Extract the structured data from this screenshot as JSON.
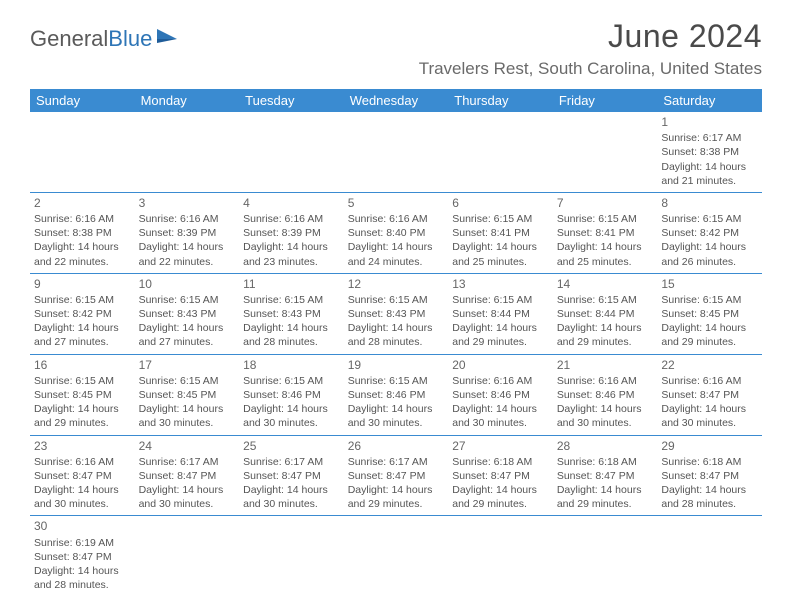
{
  "logo": {
    "text1": "General",
    "text2": "Blue"
  },
  "title": "June 2024",
  "location": "Travelers Rest, South Carolina, United States",
  "colors": {
    "header_bg": "#3a8bd1",
    "header_text": "#ffffff",
    "border": "#3a8bd1",
    "body_text": "#555555",
    "title_text": "#4a4a4a",
    "location_text": "#6a6a6a",
    "logo_gray": "#5a5a5a",
    "logo_blue": "#2e75b6"
  },
  "weekdays": [
    "Sunday",
    "Monday",
    "Tuesday",
    "Wednesday",
    "Thursday",
    "Friday",
    "Saturday"
  ],
  "weeks": [
    [
      null,
      null,
      null,
      null,
      null,
      null,
      {
        "n": "1",
        "sr": "6:17 AM",
        "ss": "8:38 PM",
        "dl": "14 hours and 21 minutes."
      }
    ],
    [
      {
        "n": "2",
        "sr": "6:16 AM",
        "ss": "8:38 PM",
        "dl": "14 hours and 22 minutes."
      },
      {
        "n": "3",
        "sr": "6:16 AM",
        "ss": "8:39 PM",
        "dl": "14 hours and 22 minutes."
      },
      {
        "n": "4",
        "sr": "6:16 AM",
        "ss": "8:39 PM",
        "dl": "14 hours and 23 minutes."
      },
      {
        "n": "5",
        "sr": "6:16 AM",
        "ss": "8:40 PM",
        "dl": "14 hours and 24 minutes."
      },
      {
        "n": "6",
        "sr": "6:15 AM",
        "ss": "8:41 PM",
        "dl": "14 hours and 25 minutes."
      },
      {
        "n": "7",
        "sr": "6:15 AM",
        "ss": "8:41 PM",
        "dl": "14 hours and 25 minutes."
      },
      {
        "n": "8",
        "sr": "6:15 AM",
        "ss": "8:42 PM",
        "dl": "14 hours and 26 minutes."
      }
    ],
    [
      {
        "n": "9",
        "sr": "6:15 AM",
        "ss": "8:42 PM",
        "dl": "14 hours and 27 minutes."
      },
      {
        "n": "10",
        "sr": "6:15 AM",
        "ss": "8:43 PM",
        "dl": "14 hours and 27 minutes."
      },
      {
        "n": "11",
        "sr": "6:15 AM",
        "ss": "8:43 PM",
        "dl": "14 hours and 28 minutes."
      },
      {
        "n": "12",
        "sr": "6:15 AM",
        "ss": "8:43 PM",
        "dl": "14 hours and 28 minutes."
      },
      {
        "n": "13",
        "sr": "6:15 AM",
        "ss": "8:44 PM",
        "dl": "14 hours and 29 minutes."
      },
      {
        "n": "14",
        "sr": "6:15 AM",
        "ss": "8:44 PM",
        "dl": "14 hours and 29 minutes."
      },
      {
        "n": "15",
        "sr": "6:15 AM",
        "ss": "8:45 PM",
        "dl": "14 hours and 29 minutes."
      }
    ],
    [
      {
        "n": "16",
        "sr": "6:15 AM",
        "ss": "8:45 PM",
        "dl": "14 hours and 29 minutes."
      },
      {
        "n": "17",
        "sr": "6:15 AM",
        "ss": "8:45 PM",
        "dl": "14 hours and 30 minutes."
      },
      {
        "n": "18",
        "sr": "6:15 AM",
        "ss": "8:46 PM",
        "dl": "14 hours and 30 minutes."
      },
      {
        "n": "19",
        "sr": "6:15 AM",
        "ss": "8:46 PM",
        "dl": "14 hours and 30 minutes."
      },
      {
        "n": "20",
        "sr": "6:16 AM",
        "ss": "8:46 PM",
        "dl": "14 hours and 30 minutes."
      },
      {
        "n": "21",
        "sr": "6:16 AM",
        "ss": "8:46 PM",
        "dl": "14 hours and 30 minutes."
      },
      {
        "n": "22",
        "sr": "6:16 AM",
        "ss": "8:47 PM",
        "dl": "14 hours and 30 minutes."
      }
    ],
    [
      {
        "n": "23",
        "sr": "6:16 AM",
        "ss": "8:47 PM",
        "dl": "14 hours and 30 minutes."
      },
      {
        "n": "24",
        "sr": "6:17 AM",
        "ss": "8:47 PM",
        "dl": "14 hours and 30 minutes."
      },
      {
        "n": "25",
        "sr": "6:17 AM",
        "ss": "8:47 PM",
        "dl": "14 hours and 30 minutes."
      },
      {
        "n": "26",
        "sr": "6:17 AM",
        "ss": "8:47 PM",
        "dl": "14 hours and 29 minutes."
      },
      {
        "n": "27",
        "sr": "6:18 AM",
        "ss": "8:47 PM",
        "dl": "14 hours and 29 minutes."
      },
      {
        "n": "28",
        "sr": "6:18 AM",
        "ss": "8:47 PM",
        "dl": "14 hours and 29 minutes."
      },
      {
        "n": "29",
        "sr": "6:18 AM",
        "ss": "8:47 PM",
        "dl": "14 hours and 28 minutes."
      }
    ],
    [
      {
        "n": "30",
        "sr": "6:19 AM",
        "ss": "8:47 PM",
        "dl": "14 hours and 28 minutes."
      },
      null,
      null,
      null,
      null,
      null,
      null
    ]
  ],
  "labels": {
    "sunrise": "Sunrise:",
    "sunset": "Sunset:",
    "daylight": "Daylight:"
  }
}
